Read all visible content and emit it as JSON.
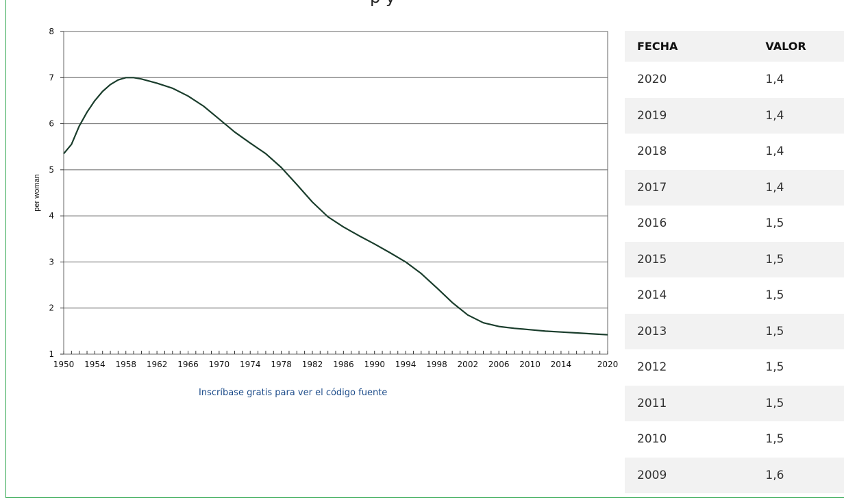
{
  "page": {
    "top_title": "p y",
    "source_link": "Inscríbase gratis para ver el código fuente"
  },
  "colors": {
    "line": "#1a3d2c",
    "grid": "#666666",
    "frame": "#2aa44a",
    "link": "#1d4c8a",
    "stripe": "#f2f2f2"
  },
  "chart_data": {
    "type": "line",
    "title": "",
    "xlabel": "",
    "ylabel": "per woman",
    "xlim": [
      1950,
      2020
    ],
    "ylim": [
      1,
      8
    ],
    "y_ticks": [
      "1",
      "2",
      "3",
      "4",
      "5",
      "6",
      "7",
      "8"
    ],
    "x_tick_labels": [
      "1950",
      "1954",
      "1958",
      "1962",
      "1966",
      "1970",
      "1974",
      "1978",
      "1982",
      "1986",
      "1990",
      "1994",
      "1998",
      "2002",
      "2006",
      "2010",
      "2014",
      "2020"
    ],
    "grid": "horizontal",
    "series": [
      {
        "x": [
          1950,
          1951,
          1952,
          1953,
          1954,
          1955,
          1956,
          1957,
          1958,
          1959,
          1960,
          1962,
          1964,
          1966,
          1968,
          1970,
          1972,
          1974,
          1976,
          1978,
          1980,
          1982,
          1984,
          1986,
          1988,
          1990,
          1992,
          1994,
          1996,
          1998,
          2000,
          2002,
          2004,
          2006,
          2008,
          2010,
          2012,
          2014,
          2016,
          2018,
          2020
        ],
        "y": [
          5.35,
          5.55,
          5.95,
          6.25,
          6.5,
          6.7,
          6.85,
          6.95,
          7.0,
          7.0,
          6.97,
          6.88,
          6.77,
          6.6,
          6.38,
          6.1,
          5.82,
          5.58,
          5.35,
          5.05,
          4.68,
          4.3,
          3.98,
          3.76,
          3.57,
          3.39,
          3.2,
          3.0,
          2.75,
          2.44,
          2.12,
          1.85,
          1.68,
          1.6,
          1.56,
          1.53,
          1.5,
          1.48,
          1.46,
          1.44,
          1.42
        ]
      }
    ]
  },
  "table": {
    "headers": [
      "FECHA",
      "VALOR"
    ],
    "rows": [
      [
        "2020",
        "1,4"
      ],
      [
        "2019",
        "1,4"
      ],
      [
        "2018",
        "1,4"
      ],
      [
        "2017",
        "1,4"
      ],
      [
        "2016",
        "1,5"
      ],
      [
        "2015",
        "1,5"
      ],
      [
        "2014",
        "1,5"
      ],
      [
        "2013",
        "1,5"
      ],
      [
        "2012",
        "1,5"
      ],
      [
        "2011",
        "1,5"
      ],
      [
        "2010",
        "1,5"
      ],
      [
        "2009",
        "1,6"
      ]
    ]
  }
}
